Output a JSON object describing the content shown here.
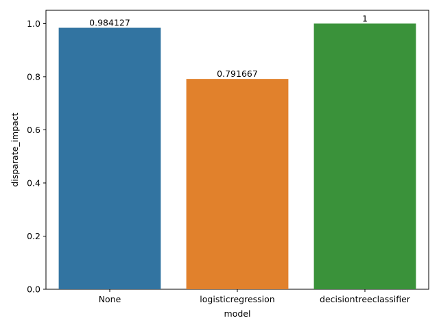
{
  "chart_data": {
    "type": "bar",
    "categories": [
      "None",
      "logisticregression",
      "decisiontreeclassifier"
    ],
    "values": [
      0.984127,
      0.791667,
      1
    ],
    "data_labels": [
      "0.984127",
      "0.791667",
      "1"
    ],
    "colors": [
      "#3274a1",
      "#e1812c",
      "#3a923a"
    ],
    "xlabel": "model",
    "ylabel": "disparate_impact",
    "ylim": [
      0,
      1.05
    ],
    "yticks": [
      0.0,
      0.2,
      0.4,
      0.6,
      0.8,
      1.0
    ],
    "ytick_labels": [
      "0.0",
      "0.2",
      "0.4",
      "0.6",
      "0.8",
      "1.0"
    ],
    "grid": false,
    "legend": "none"
  }
}
